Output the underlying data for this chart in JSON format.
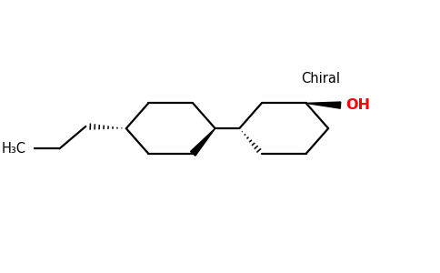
{
  "background_color": "#ffffff",
  "figure_width": 4.84,
  "figure_height": 3.0,
  "dpi": 100,
  "bond_color": "#000000",
  "oh_color": "#ff0000",
  "text_color": "#000000",
  "chiral_text": "Chiral",
  "oh_text": "OH",
  "h3c_text": "H₃C",
  "line_width": 1.6,
  "font_size": 10.5
}
